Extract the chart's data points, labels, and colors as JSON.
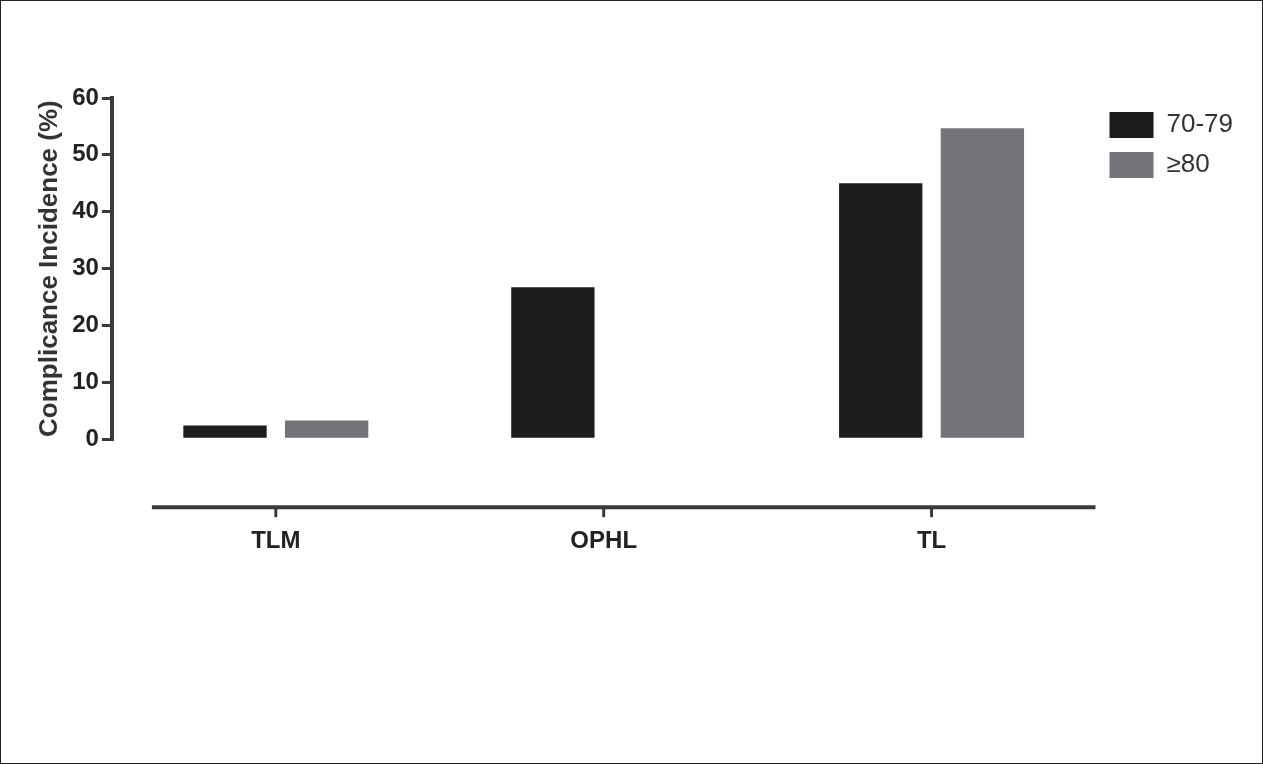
{
  "chart_data": {
    "type": "bar",
    "ylabel": "Complicance Incidence (%)",
    "categories": [
      "TLM",
      "OPHL",
      "TL"
    ],
    "series": [
      {
        "name": "70-79",
        "color": "#1c1c1c",
        "values": [
          2.4,
          26.7,
          45
        ]
      },
      {
        "name": "≥80",
        "color": "#737478",
        "values": [
          3.3,
          0,
          54.7
        ]
      }
    ],
    "ylim": [
      0,
      60
    ],
    "yticks": [
      0,
      10,
      20,
      30,
      40,
      50,
      60
    ],
    "grid": false,
    "legend": "top right"
  }
}
